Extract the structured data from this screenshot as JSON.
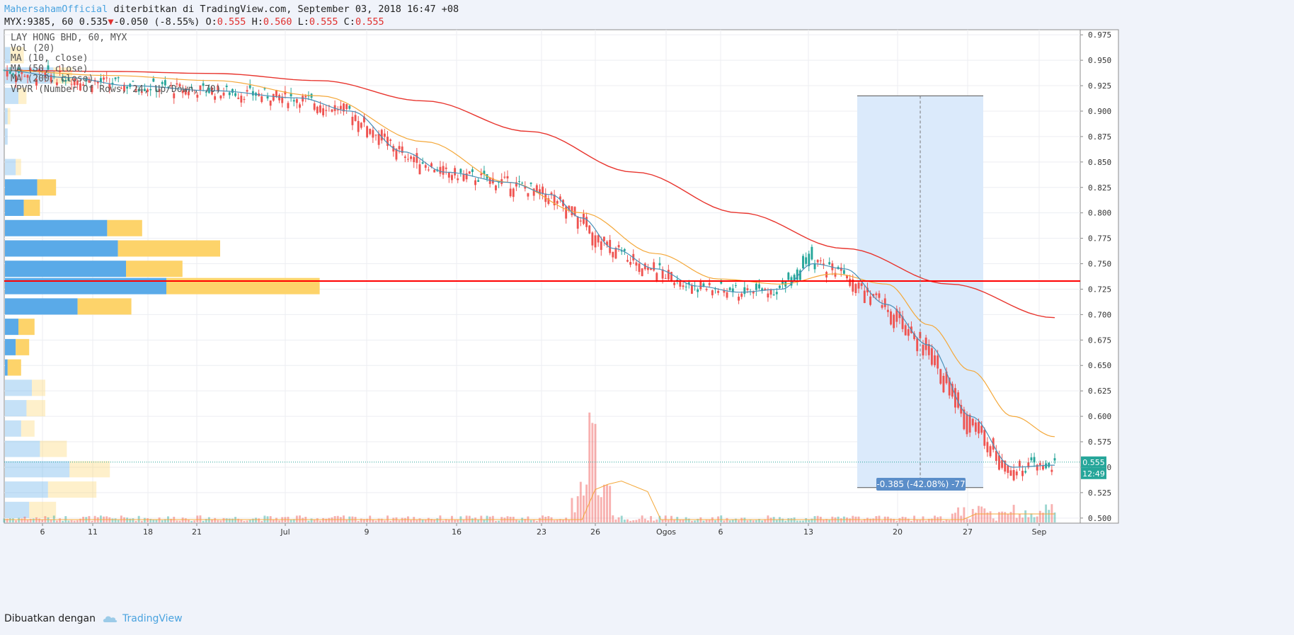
{
  "header": {
    "author": "MahersahamOfficial",
    "published": "diterbitkan di TradingView.com, September 03, 2018 16:47 +08",
    "symbol": "MYX:9385, 60",
    "last": "0.535",
    "change": "-0.050 (-8.55%)",
    "o_label": "O:",
    "o": "0.555",
    "h_label": "H:",
    "h": "0.560",
    "l_label": "L:",
    "l": "0.555",
    "c_label": "C:",
    "c": "0.555"
  },
  "legend": [
    "LAY HONG BHD, 60, MYX",
    "Vol (20)",
    "MA (10, close)",
    "MA (50, close)",
    "MA (200, close)",
    "VPVR (Number Of Rows, 24, Up/Down, 70)"
  ],
  "footer": {
    "made_with": "Dibuatkan dengan",
    "brand": "TradingView"
  },
  "colors": {
    "up": "#26a69a",
    "down": "#ef5350",
    "ma10": "#4a90b8",
    "ma50": "#f4a83a",
    "ma200": "#e8352e",
    "vp_up": "#5aaae8",
    "vp_down": "#fdd36a",
    "measure": "#dbeafb",
    "line": "#ff0000"
  },
  "chart_data": {
    "type": "candlestick",
    "y_range": [
      0.495,
      0.98
    ],
    "y_ticks": [
      "0.975",
      "0.950",
      "0.925",
      "0.900",
      "0.875",
      "0.850",
      "0.825",
      "0.800",
      "0.775",
      "0.750",
      "0.725",
      "0.700",
      "0.675",
      "0.650",
      "0.625",
      "0.600",
      "0.575",
      "0.550",
      "0.525",
      "0.500"
    ],
    "x_labels": [
      "6",
      "11",
      "18",
      "21",
      "Jul",
      "9",
      "16",
      "23",
      "26",
      "Ogos",
      "6",
      "13",
      "20",
      "27",
      "Sep"
    ],
    "price_tag": "0.555",
    "time_tag": "12:49",
    "horizontal_line": 0.733,
    "measure": {
      "from": 0.915,
      "to": 0.53,
      "label": "-0.385 (-42.08%) -77"
    },
    "ma_keypoints": {
      "ma10": [
        [
          0,
          0.94
        ],
        [
          0.06,
          0.933
        ],
        [
          0.12,
          0.925
        ],
        [
          0.2,
          0.92
        ],
        [
          0.28,
          0.913
        ],
        [
          0.33,
          0.9
        ],
        [
          0.38,
          0.86
        ],
        [
          0.42,
          0.84
        ],
        [
          0.48,
          0.83
        ],
        [
          0.52,
          0.818
        ],
        [
          0.55,
          0.795
        ],
        [
          0.58,
          0.765
        ],
        [
          0.62,
          0.745
        ],
        [
          0.66,
          0.728
        ],
        [
          0.7,
          0.722
        ],
        [
          0.74,
          0.725
        ],
        [
          0.77,
          0.75
        ],
        [
          0.8,
          0.745
        ],
        [
          0.84,
          0.71
        ],
        [
          0.88,
          0.67
        ],
        [
          0.92,
          0.6
        ],
        [
          0.96,
          0.55
        ],
        [
          1,
          0.552
        ]
      ],
      "ma50": [
        [
          0,
          0.94
        ],
        [
          0.1,
          0.935
        ],
        [
          0.2,
          0.93
        ],
        [
          0.3,
          0.915
        ],
        [
          0.4,
          0.87
        ],
        [
          0.48,
          0.83
        ],
        [
          0.55,
          0.8
        ],
        [
          0.62,
          0.76
        ],
        [
          0.68,
          0.735
        ],
        [
          0.74,
          0.73
        ],
        [
          0.79,
          0.74
        ],
        [
          0.84,
          0.73
        ],
        [
          0.88,
          0.69
        ],
        [
          0.92,
          0.645
        ],
        [
          0.96,
          0.6
        ],
        [
          1,
          0.58
        ]
      ],
      "ma200": [
        [
          0,
          0.94
        ],
        [
          0.1,
          0.939
        ],
        [
          0.2,
          0.937
        ],
        [
          0.3,
          0.93
        ],
        [
          0.4,
          0.91
        ],
        [
          0.5,
          0.88
        ],
        [
          0.6,
          0.84
        ],
        [
          0.7,
          0.8
        ],
        [
          0.8,
          0.765
        ],
        [
          0.9,
          0.73
        ],
        [
          1,
          0.697
        ]
      ]
    },
    "volume_profile": [
      {
        "price": 0.955,
        "up": 2,
        "down": 5,
        "shade": true
      },
      {
        "price": 0.935,
        "up": 18,
        "down": 7,
        "shade": true
      },
      {
        "price": 0.915,
        "up": 5,
        "down": 3,
        "shade": true
      },
      {
        "price": 0.895,
        "up": 1,
        "down": 1,
        "shade": true
      },
      {
        "price": 0.875,
        "up": 1,
        "down": 0,
        "shade": true
      },
      {
        "price": 0.845,
        "up": 4,
        "down": 2,
        "shade": true
      },
      {
        "price": 0.825,
        "up": 12,
        "down": 7,
        "shade": false
      },
      {
        "price": 0.805,
        "up": 7,
        "down": 6,
        "shade": false
      },
      {
        "price": 0.785,
        "up": 38,
        "down": 13,
        "shade": false
      },
      {
        "price": 0.765,
        "up": 42,
        "down": 38,
        "shade": false
      },
      {
        "price": 0.745,
        "up": 45,
        "down": 21,
        "shade": false
      },
      {
        "price": 0.728,
        "up": 60,
        "down": 57,
        "shade": false
      },
      {
        "price": 0.708,
        "up": 27,
        "down": 20,
        "shade": false
      },
      {
        "price": 0.688,
        "up": 5,
        "down": 6,
        "shade": false
      },
      {
        "price": 0.668,
        "up": 4,
        "down": 5,
        "shade": false
      },
      {
        "price": 0.648,
        "up": 1,
        "down": 5,
        "shade": false
      },
      {
        "price": 0.628,
        "up": 10,
        "down": 5,
        "shade": true
      },
      {
        "price": 0.608,
        "up": 8,
        "down": 7,
        "shade": true
      },
      {
        "price": 0.588,
        "up": 6,
        "down": 5,
        "shade": true
      },
      {
        "price": 0.568,
        "up": 13,
        "down": 10,
        "shade": true
      },
      {
        "price": 0.548,
        "up": 24,
        "down": 15,
        "shade": true
      },
      {
        "price": 0.528,
        "up": 16,
        "down": 18,
        "shade": true
      },
      {
        "price": 0.508,
        "up": 9,
        "down": 10,
        "shade": true
      }
    ]
  }
}
